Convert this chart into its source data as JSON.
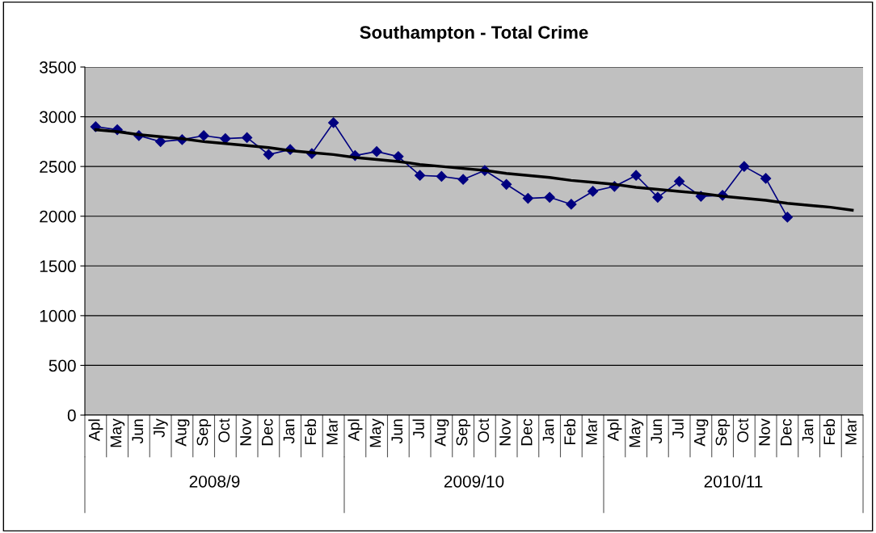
{
  "chart_data": {
    "type": "line",
    "title": "Southampton - Total Crime",
    "categories": [
      "Apl",
      "May",
      "Jun",
      "Jly",
      "Aug",
      "Sep",
      "Oct",
      "Nov",
      "Dec",
      "Jan",
      "Feb",
      "Mar",
      "Apl",
      "May",
      "Jun",
      "Jul",
      "Aug",
      "Sep",
      "Oct",
      "Nov",
      "Dec",
      "Jan",
      "Feb",
      "Mar",
      "Apl",
      "May",
      "Jun",
      "Jul",
      "Aug",
      "Sep",
      "Oct",
      "Nov",
      "Dec",
      "Jan",
      "Feb",
      "Mar"
    ],
    "series": [
      {
        "color": "#000080",
        "marker": "diamond",
        "values": [
          2900,
          2870,
          2810,
          2750,
          2770,
          2810,
          2780,
          2790,
          2620,
          2670,
          2630,
          2940,
          2610,
          2650,
          2600,
          2410,
          2400,
          2370,
          2460,
          2320,
          2180,
          2190,
          2120,
          2250,
          2300,
          2410,
          2190,
          2350,
          2200,
          2210,
          2500,
          2380,
          1990,
          null,
          null,
          null
        ]
      },
      {
        "color": "#000000",
        "marker": "none",
        "values": [
          2870,
          2850,
          2820,
          2800,
          2780,
          2750,
          2730,
          2710,
          2690,
          2660,
          2640,
          2620,
          2590,
          2570,
          2550,
          2520,
          2500,
          2480,
          2460,
          2430,
          2410,
          2390,
          2360,
          2340,
          2320,
          2290,
          2270,
          2250,
          2230,
          2200,
          2180,
          2160,
          2130,
          2110,
          2090,
          2060
        ]
      }
    ],
    "annotations": [
      "2008/9",
      "2009/10",
      "2010/11"
    ],
    "ylim": [
      0,
      3500
    ],
    "yticks": [
      0,
      500,
      1000,
      1500,
      2000,
      2500,
      3000,
      3500
    ],
    "grid": "y",
    "legend": false
  }
}
